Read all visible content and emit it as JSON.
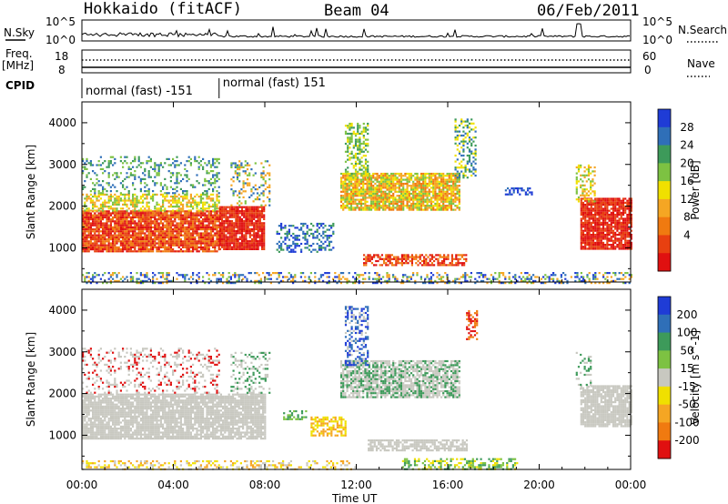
{
  "header": {
    "station": "Hokkaido (fitACF)",
    "beam": "Beam 04",
    "date": "06/Feb/2011"
  },
  "noise_panel": {
    "left_label": "N.Sky",
    "right_label": "N.Search",
    "left_ticks": [
      "10^5",
      "10^0"
    ],
    "right_ticks": [
      "10^5",
      "10^0"
    ]
  },
  "freq_panel": {
    "left_label_1": "Freq.",
    "left_label_2": "[MHz]",
    "right_label": "Nave",
    "left_ticks": [
      "18",
      "8"
    ],
    "right_ticks": [
      "60",
      "0"
    ]
  },
  "cpid_panel": {
    "label": "CPID",
    "segments": [
      {
        "label": "normal (fast) -151",
        "start_hour": 0,
        "end_hour": 6
      },
      {
        "label": "normal (fast) 151",
        "start_hour": 6,
        "end_hour": 24
      }
    ]
  },
  "x_axis": {
    "label": "Time UT",
    "range": [
      0,
      24
    ],
    "tick_labels": [
      "00:00",
      "04:00",
      "08:00",
      "12:00",
      "16:00",
      "20:00",
      "00:00"
    ]
  },
  "chart_data": [
    {
      "type": "heatmap",
      "quantity": "Power",
      "ylabel": "Slant Range [km]",
      "ylim": [
        180,
        4500
      ],
      "y_ticks": [
        1000,
        2000,
        3000,
        4000
      ],
      "colorbar": {
        "label": "Power [dB]",
        "ticks": [
          4,
          8,
          12,
          16,
          20,
          24,
          28
        ],
        "levels": [
          "#1f3cd6",
          "#2f6fb8",
          "#3d9a5a",
          "#7dc242",
          "#f0e000",
          "#f5a623",
          "#f07a10",
          "#e84010",
          "#e01010"
        ]
      },
      "regions": [
        {
          "t0": 0.0,
          "t1": 6.0,
          "r0": 900,
          "r1": 1900,
          "levels": [
            8,
            7,
            6
          ],
          "density": 0.9
        },
        {
          "t0": 0.0,
          "t1": 6.0,
          "r0": 1900,
          "r1": 2300,
          "levels": [
            4,
            3,
            5
          ],
          "density": 0.55
        },
        {
          "t0": 0.0,
          "t1": 6.0,
          "r0": 2300,
          "r1": 3200,
          "levels": [
            1,
            2,
            3
          ],
          "density": 0.25
        },
        {
          "t0": 6.0,
          "t1": 8.0,
          "r0": 950,
          "r1": 2000,
          "levels": [
            8,
            7
          ],
          "density": 0.9
        },
        {
          "t0": 6.5,
          "t1": 8.2,
          "r0": 2000,
          "r1": 3100,
          "levels": [
            1,
            3,
            5
          ],
          "density": 0.3
        },
        {
          "t0": 8.5,
          "t1": 11.0,
          "r0": 900,
          "r1": 1600,
          "levels": [
            0,
            1,
            2
          ],
          "density": 0.45
        },
        {
          "t0": 11.3,
          "t1": 16.5,
          "r0": 1900,
          "r1": 2800,
          "levels": [
            4,
            5,
            6,
            3
          ],
          "density": 0.85
        },
        {
          "t0": 11.5,
          "t1": 12.5,
          "r0": 2700,
          "r1": 4000,
          "levels": [
            2,
            3,
            4
          ],
          "density": 0.5
        },
        {
          "t0": 16.3,
          "t1": 17.2,
          "r0": 2700,
          "r1": 4100,
          "levels": [
            1,
            2,
            4
          ],
          "density": 0.4
        },
        {
          "t0": 12.3,
          "t1": 16.8,
          "r0": 600,
          "r1": 850,
          "levels": [
            8,
            7,
            6
          ],
          "density": 0.65
        },
        {
          "t0": 0.0,
          "t1": 24.0,
          "r0": 180,
          "r1": 420,
          "levels": [
            0,
            1,
            3,
            5
          ],
          "density": 0.35
        },
        {
          "t0": 21.8,
          "t1": 24.0,
          "r0": 1000,
          "r1": 2200,
          "levels": [
            8,
            7
          ],
          "density": 0.88
        },
        {
          "t0": 21.6,
          "t1": 22.4,
          "r0": 2100,
          "r1": 3000,
          "levels": [
            3,
            4,
            5
          ],
          "density": 0.45
        },
        {
          "t0": 18.5,
          "t1": 19.8,
          "r0": 2300,
          "r1": 2450,
          "levels": [
            0,
            1
          ],
          "density": 0.4
        }
      ]
    },
    {
      "type": "heatmap",
      "quantity": "Velocity",
      "ylabel": "Slant Range [km]",
      "ylim": [
        180,
        4500
      ],
      "y_ticks": [
        1000,
        2000,
        3000,
        4000
      ],
      "colorbar": {
        "label": "Velocity [m s^-1]",
        "ticks": [
          200,
          100,
          50,
          15,
          -15,
          -50,
          -100,
          -200
        ],
        "levels": [
          "#1f3cd6",
          "#2f6fb8",
          "#3d9a5a",
          "#7dc242",
          "#c8c8c0",
          "#f0e000",
          "#f5a623",
          "#f07a10",
          "#e01010"
        ]
      },
      "regions": [
        {
          "t0": 0.0,
          "t1": 8.0,
          "r0": 900,
          "r1": 2000,
          "levels": [
            4,
            4,
            4
          ],
          "density": 0.85
        },
        {
          "t0": 0.0,
          "t1": 6.0,
          "r0": 2000,
          "r1": 3100,
          "levels": [
            4,
            8,
            4
          ],
          "density": 0.25
        },
        {
          "t0": 6.5,
          "t1": 8.2,
          "r0": 2000,
          "r1": 3000,
          "levels": [
            4,
            2
          ],
          "density": 0.3
        },
        {
          "t0": 8.8,
          "t1": 9.8,
          "r0": 1400,
          "r1": 1600,
          "levels": [
            2,
            3
          ],
          "density": 0.5
        },
        {
          "t0": 10.0,
          "t1": 11.5,
          "r0": 1000,
          "r1": 1450,
          "levels": [
            5,
            6
          ],
          "density": 0.55
        },
        {
          "t0": 11.3,
          "t1": 16.5,
          "r0": 1900,
          "r1": 2800,
          "levels": [
            4,
            4,
            2
          ],
          "density": 0.8
        },
        {
          "t0": 11.5,
          "t1": 12.5,
          "r0": 2700,
          "r1": 4100,
          "levels": [
            0,
            1,
            4
          ],
          "density": 0.45
        },
        {
          "t0": 16.8,
          "t1": 17.3,
          "r0": 3300,
          "r1": 4000,
          "levels": [
            8,
            7
          ],
          "density": 0.6
        },
        {
          "t0": 12.5,
          "t1": 16.8,
          "r0": 650,
          "r1": 900,
          "levels": [
            4
          ],
          "density": 0.7
        },
        {
          "t0": 14.0,
          "t1": 19.0,
          "r0": 200,
          "r1": 450,
          "levels": [
            3,
            2,
            5
          ],
          "density": 0.45
        },
        {
          "t0": 0.0,
          "t1": 12.0,
          "r0": 180,
          "r1": 400,
          "levels": [
            6,
            5,
            4
          ],
          "density": 0.3
        },
        {
          "t0": 21.8,
          "t1": 24.0,
          "r0": 1200,
          "r1": 2200,
          "levels": [
            4
          ],
          "density": 0.85
        },
        {
          "t0": 21.6,
          "t1": 22.3,
          "r0": 2100,
          "r1": 3000,
          "levels": [
            4,
            2
          ],
          "density": 0.35
        }
      ]
    }
  ]
}
